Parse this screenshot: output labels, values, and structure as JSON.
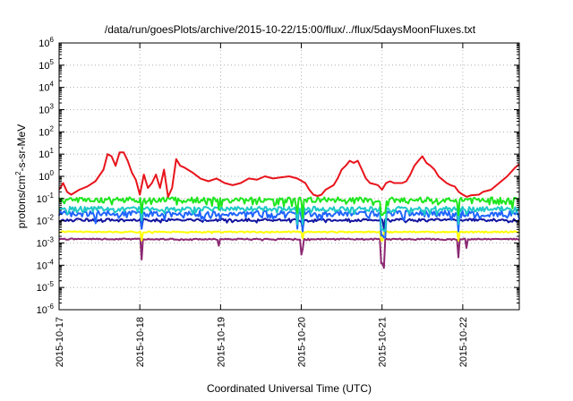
{
  "chart_data": {
    "type": "line",
    "title": "/data/run/goesPlots/archive/2015-10-22/15:00/flux/../flux/5daysMoonFluxes.txt",
    "xlabel": "Coordinated Universal Time (UTC)",
    "ylabel": "protons/cm²-s-sr-MeV",
    "ylabel_parts": {
      "before": "protons/cm",
      "sup": "2",
      "after": "-s-sr-MeV"
    },
    "yscale": "log",
    "ylim": [
      1e-06,
      1000000.0
    ],
    "xlim_days": [
      0,
      5.7
    ],
    "grid": true,
    "legend": "none",
    "x_ticks": [
      {
        "label": "2015-10-17",
        "day": 0
      },
      {
        "label": "2015-10-18",
        "day": 1
      },
      {
        "label": "2015-10-19",
        "day": 2
      },
      {
        "label": "2015-10-20",
        "day": 3
      },
      {
        "label": "2015-10-21",
        "day": 4
      },
      {
        "label": "2015-10-22",
        "day": 5
      }
    ],
    "y_ticks": [
      {
        "base": "10",
        "exp": "6",
        "value": 1000000.0
      },
      {
        "base": "10",
        "exp": "5",
        "value": 100000.0
      },
      {
        "base": "10",
        "exp": "4",
        "value": 10000.0
      },
      {
        "base": "10",
        "exp": "3",
        "value": 1000.0
      },
      {
        "base": "10",
        "exp": "2",
        "value": 100.0
      },
      {
        "base": "10",
        "exp": "1",
        "value": 10.0
      },
      {
        "base": "10",
        "exp": "0",
        "value": 1
      },
      {
        "base": "10",
        "exp": "-1",
        "value": 0.1
      },
      {
        "base": "10",
        "exp": "-2",
        "value": 0.01
      },
      {
        "base": "10",
        "exp": "-3",
        "value": 0.001
      },
      {
        "base": "10",
        "exp": "-4",
        "value": 0.0001
      },
      {
        "base": "10",
        "exp": "-5",
        "value": 1e-05
      },
      {
        "base": "10",
        "exp": "-6",
        "value": 1e-06
      }
    ],
    "series": [
      {
        "color": "#e8141c",
        "values": [
          [
            0.0,
            0.25
          ],
          [
            0.05,
            0.5
          ],
          [
            0.1,
            0.2
          ],
          [
            0.15,
            0.15
          ],
          [
            0.25,
            0.25
          ],
          [
            0.35,
            0.35
          ],
          [
            0.45,
            0.6
          ],
          [
            0.55,
            2
          ],
          [
            0.6,
            10
          ],
          [
            0.65,
            8
          ],
          [
            0.7,
            3
          ],
          [
            0.75,
            12
          ],
          [
            0.8,
            12
          ],
          [
            0.85,
            5
          ],
          [
            0.9,
            1.5
          ],
          [
            0.95,
            0.7
          ],
          [
            1.0,
            0.15
          ],
          [
            1.05,
            1.2
          ],
          [
            1.1,
            0.3
          ],
          [
            1.15,
            0.5
          ],
          [
            1.2,
            1.2
          ],
          [
            1.25,
            0.3
          ],
          [
            1.3,
            2
          ],
          [
            1.35,
            0.12
          ],
          [
            1.4,
            0.3
          ],
          [
            1.45,
            6
          ],
          [
            1.5,
            3
          ],
          [
            1.55,
            2.5
          ],
          [
            1.65,
            1.5
          ],
          [
            1.75,
            0.8
          ],
          [
            1.85,
            0.6
          ],
          [
            1.95,
            0.8
          ],
          [
            2.05,
            0.5
          ],
          [
            2.15,
            0.4
          ],
          [
            2.25,
            0.5
          ],
          [
            2.35,
            0.8
          ],
          [
            2.45,
            0.7
          ],
          [
            2.55,
            1.0
          ],
          [
            2.65,
            0.8
          ],
          [
            2.75,
            0.9
          ],
          [
            2.85,
            1.0
          ],
          [
            2.95,
            0.8
          ],
          [
            3.05,
            0.5
          ],
          [
            3.1,
            0.25
          ],
          [
            3.15,
            0.15
          ],
          [
            3.2,
            0.13
          ],
          [
            3.25,
            0.15
          ],
          [
            3.3,
            0.25
          ],
          [
            3.4,
            0.4
          ],
          [
            3.45,
            0.8
          ],
          [
            3.5,
            2
          ],
          [
            3.55,
            3
          ],
          [
            3.6,
            5
          ],
          [
            3.65,
            4
          ],
          [
            3.7,
            5
          ],
          [
            3.75,
            2
          ],
          [
            3.8,
            0.8
          ],
          [
            3.85,
            0.5
          ],
          [
            3.9,
            0.45
          ],
          [
            3.95,
            0.4
          ],
          [
            4.0,
            0.25
          ],
          [
            4.05,
            0.5
          ],
          [
            4.1,
            0.6
          ],
          [
            4.15,
            0.5
          ],
          [
            4.2,
            0.5
          ],
          [
            4.25,
            0.5
          ],
          [
            4.3,
            0.6
          ],
          [
            4.35,
            1.2
          ],
          [
            4.4,
            3
          ],
          [
            4.45,
            5
          ],
          [
            4.5,
            8
          ],
          [
            4.55,
            4
          ],
          [
            4.6,
            3
          ],
          [
            4.65,
            2
          ],
          [
            4.7,
            1.0
          ],
          [
            4.75,
            0.7
          ],
          [
            4.8,
            0.5
          ],
          [
            4.85,
            0.4
          ],
          [
            4.9,
            0.35
          ],
          [
            4.95,
            0.2
          ],
          [
            5.0,
            0.15
          ],
          [
            5.05,
            0.12
          ],
          [
            5.1,
            0.14
          ],
          [
            5.2,
            0.15
          ],
          [
            5.25,
            0.2
          ],
          [
            5.35,
            0.25
          ],
          [
            5.45,
            0.5
          ],
          [
            5.55,
            1.0
          ],
          [
            5.65,
            2.5
          ],
          [
            5.7,
            3.5
          ]
        ]
      },
      {
        "color": "#1ee61e",
        "base": 0.09,
        "amp": 0.55,
        "seed": 11,
        "dips": [
          [
            1.02,
            0.25
          ],
          [
            1.98,
            0.35
          ],
          [
            2.95,
            0.25
          ],
          [
            3.02,
            0.15
          ],
          [
            4.0,
            0.2
          ],
          [
            4.03,
            0.25
          ],
          [
            4.95,
            0.2
          ],
          [
            5.62,
            0.4
          ]
        ]
      },
      {
        "color": "#1ec8c8",
        "base": 0.035,
        "amp": 0.5,
        "seed": 23,
        "dips": [
          [
            1.02,
            0.3
          ],
          [
            2.95,
            0.2
          ],
          [
            3.02,
            0.2
          ],
          [
            4.0,
            0.12
          ],
          [
            4.03,
            0.1
          ],
          [
            4.95,
            0.2
          ]
        ]
      },
      {
        "color": "#1e64ff",
        "base": 0.022,
        "amp": 0.6,
        "seed": 37,
        "dips": [
          [
            0.45,
            0.35
          ],
          [
            1.02,
            0.2
          ],
          [
            2.95,
            0.2
          ],
          [
            3.02,
            0.15
          ],
          [
            4.0,
            0.1
          ],
          [
            4.03,
            0.08
          ],
          [
            4.95,
            0.15
          ]
        ]
      },
      {
        "color": "#1414a0",
        "base": 0.011,
        "amp": 0.25,
        "seed": 53,
        "dips": [
          [
            1.02,
            0.4
          ],
          [
            3.02,
            0.4
          ],
          [
            4.02,
            0.4
          ]
        ]
      },
      {
        "color": "#ffff00",
        "base": 0.0032,
        "amp": 0.12,
        "seed": 71,
        "dips": [
          [
            1.02,
            0.4
          ],
          [
            3.02,
            0.5
          ],
          [
            4.0,
            0.4
          ],
          [
            4.95,
            0.4
          ]
        ]
      },
      {
        "color": "#8c2872",
        "base": 0.0015,
        "amp": 0.12,
        "seed": 89,
        "dips": [
          [
            1.02,
            0.12
          ],
          [
            1.98,
            0.5
          ],
          [
            3.0,
            0.2
          ],
          [
            3.02,
            0.35
          ],
          [
            4.0,
            0.08
          ],
          [
            4.02,
            0.05
          ],
          [
            4.95,
            0.15
          ],
          [
            5.05,
            0.4
          ]
        ]
      }
    ]
  }
}
